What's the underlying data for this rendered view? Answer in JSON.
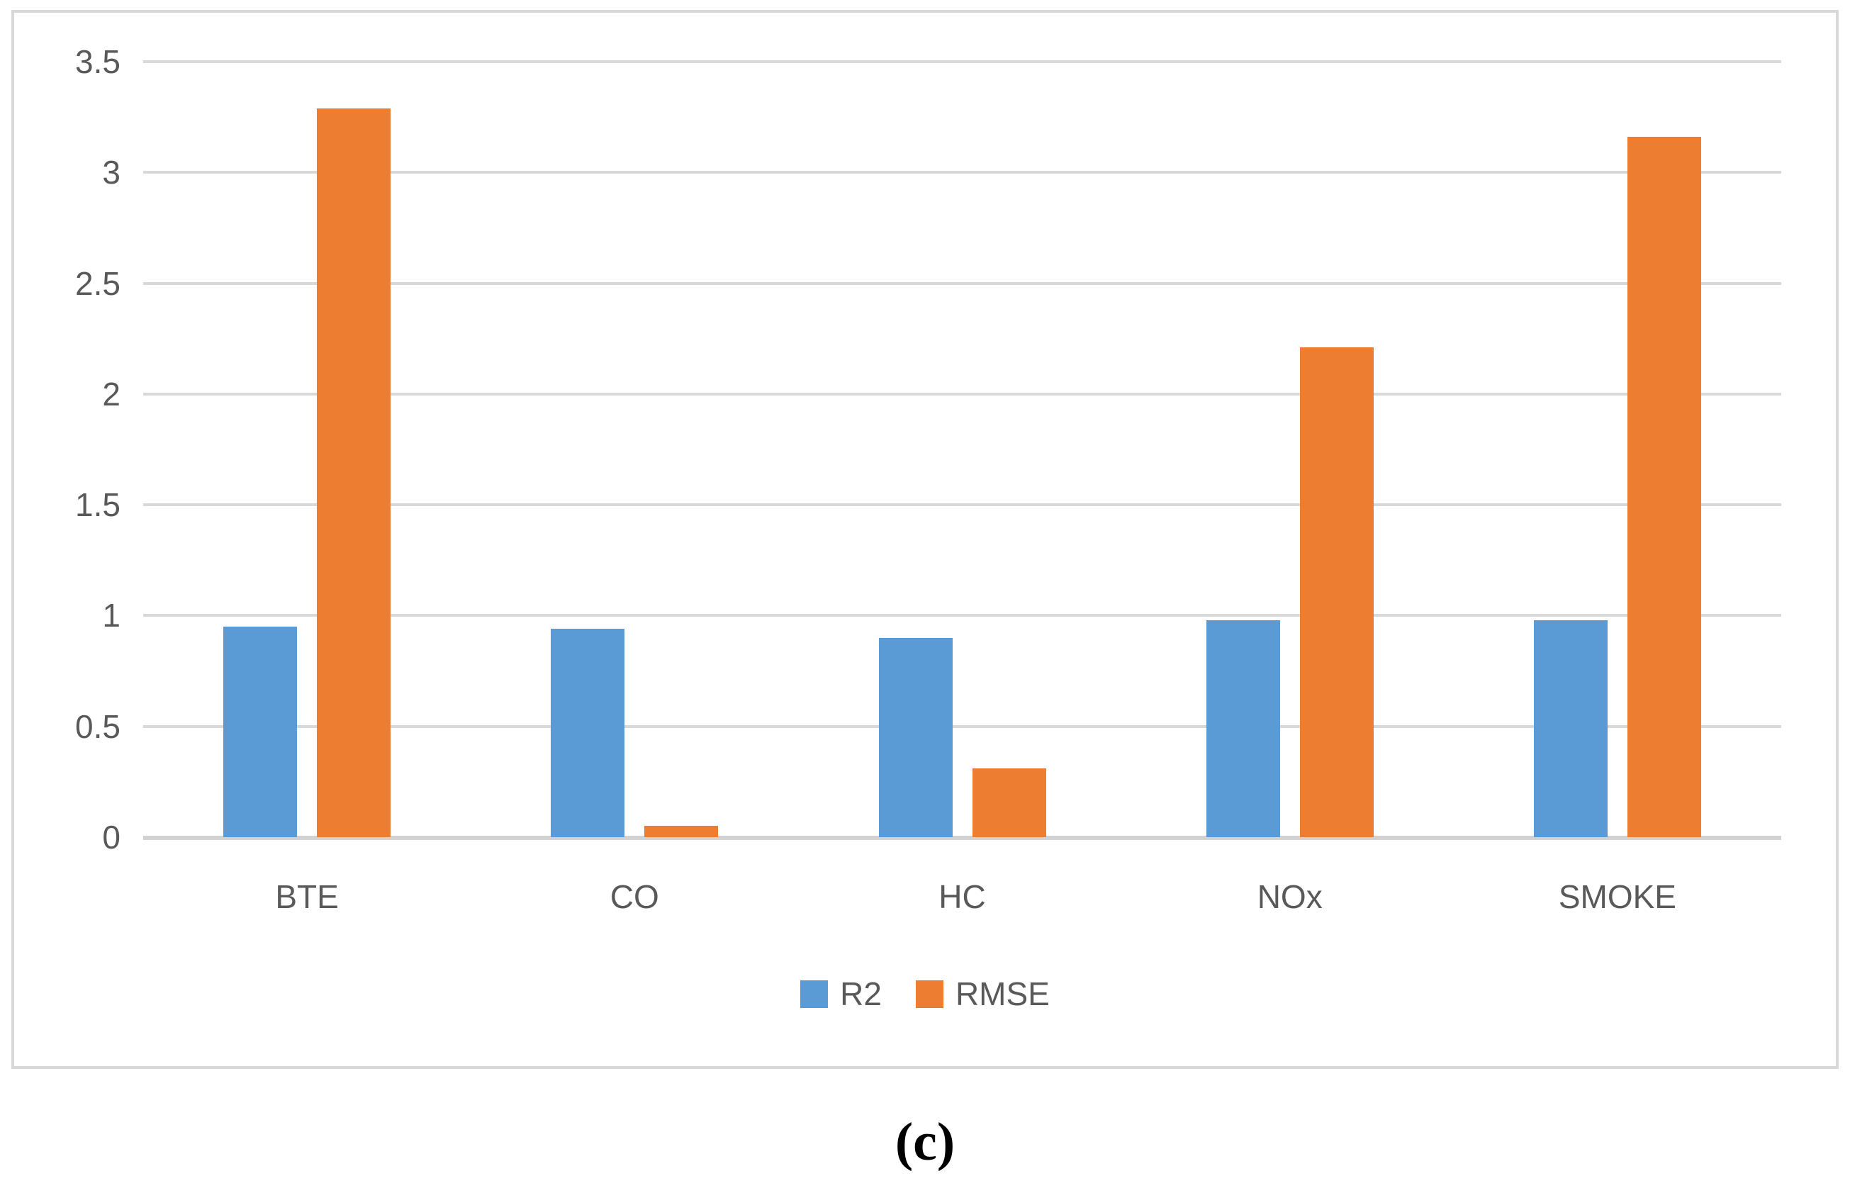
{
  "chart_data": {
    "type": "bar",
    "title": "",
    "xlabel": "",
    "ylabel": "",
    "categories": [
      "BTE",
      "CO",
      "HC",
      "NOx",
      "SMOKE"
    ],
    "series": [
      {
        "name": "R2",
        "color": "#5B9BD5",
        "values": [
          0.95,
          0.94,
          0.9,
          0.98,
          0.98
        ]
      },
      {
        "name": "RMSE",
        "color": "#ED7D31",
        "values": [
          3.29,
          0.05,
          0.31,
          2.21,
          3.16
        ]
      }
    ],
    "ylim": [
      0,
      3.5
    ],
    "ytick_step": 0.5,
    "yticks": [
      3.5,
      3,
      2.5,
      2,
      1.5,
      1,
      0.5,
      0
    ],
    "grid": "horizontal",
    "gridline_color": "#D9D9D9",
    "axis_line_color": "#D2D2D2",
    "tick_text_color": "#595959",
    "legend_position": "bottom"
  },
  "caption": {
    "text": "(c)"
  }
}
